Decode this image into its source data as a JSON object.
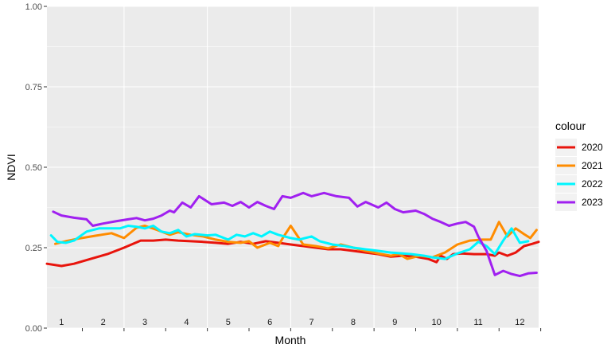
{
  "chart_data": {
    "type": "line",
    "xlabel": "Month",
    "ylabel": "NDVI",
    "ylim": [
      0,
      1
    ],
    "xlim": [
      0.65,
      12.45
    ],
    "y_ticks": [
      "0.00",
      "0.25",
      "0.50",
      "0.75",
      "1.00"
    ],
    "y_tick_values": [
      0,
      0.25,
      0.5,
      0.75,
      1.0
    ],
    "month_labels": [
      "1",
      "2",
      "3",
      "4",
      "5",
      "6",
      "7",
      "8",
      "9",
      "10",
      "11",
      "12"
    ],
    "grid": true,
    "legend": {
      "title": "colour",
      "placement": "right"
    },
    "series": [
      {
        "name": "2020",
        "color": "#e8140c",
        "x": [
          0.65,
          1.0,
          1.3,
          1.7,
          2.1,
          2.5,
          2.9,
          3.2,
          3.5,
          3.8,
          4.1,
          4.4,
          4.7,
          5.0,
          5.3,
          5.6,
          5.9,
          6.2,
          6.5,
          6.8,
          7.1,
          7.4,
          7.7,
          8.0,
          8.3,
          8.6,
          8.9,
          9.2,
          9.5,
          9.8,
          10.0,
          10.1,
          10.25,
          10.4,
          10.6,
          10.9,
          11.2,
          11.4,
          11.5,
          11.7,
          11.9,
          12.1,
          12.3,
          12.45
        ],
        "values": [
          0.2,
          0.193,
          0.2,
          0.215,
          0.23,
          0.25,
          0.272,
          0.272,
          0.275,
          0.272,
          0.27,
          0.268,
          0.265,
          0.262,
          0.268,
          0.262,
          0.27,
          0.265,
          0.26,
          0.255,
          0.25,
          0.245,
          0.245,
          0.24,
          0.235,
          0.23,
          0.222,
          0.225,
          0.222,
          0.215,
          0.205,
          0.225,
          0.215,
          0.23,
          0.232,
          0.23,
          0.23,
          0.225,
          0.235,
          0.225,
          0.235,
          0.255,
          0.262,
          0.268
        ]
      },
      {
        "name": "2021",
        "color": "#ff8c00",
        "x": [
          0.85,
          1.1,
          1.4,
          1.8,
          2.2,
          2.5,
          2.8,
          3.0,
          3.3,
          3.6,
          3.8,
          4.1,
          4.4,
          4.7,
          5.0,
          5.3,
          5.5,
          5.7,
          6.0,
          6.2,
          6.3,
          6.5,
          6.8,
          7.1,
          7.4,
          7.7,
          8.0,
          8.3,
          8.6,
          8.9,
          9.1,
          9.3,
          9.6,
          9.9,
          10.2,
          10.5,
          10.8,
          11.1,
          11.3,
          11.5,
          11.7,
          11.9,
          12.1,
          12.25,
          12.4
        ],
        "values": [
          0.262,
          0.27,
          0.278,
          0.287,
          0.295,
          0.28,
          0.312,
          0.318,
          0.305,
          0.29,
          0.298,
          0.29,
          0.285,
          0.275,
          0.268,
          0.265,
          0.27,
          0.25,
          0.265,
          0.255,
          0.278,
          0.318,
          0.26,
          0.255,
          0.248,
          0.26,
          0.25,
          0.24,
          0.232,
          0.225,
          0.23,
          0.215,
          0.225,
          0.22,
          0.235,
          0.26,
          0.272,
          0.275,
          0.275,
          0.33,
          0.285,
          0.31,
          0.292,
          0.28,
          0.305
        ]
      },
      {
        "name": "2022",
        "color": "#00f5ff",
        "x": [
          0.75,
          0.9,
          1.1,
          1.3,
          1.6,
          1.9,
          2.2,
          2.4,
          2.6,
          2.8,
          3.0,
          3.2,
          3.4,
          3.6,
          3.8,
          4.0,
          4.2,
          4.5,
          4.7,
          5.0,
          5.2,
          5.4,
          5.6,
          5.8,
          6.0,
          6.2,
          6.5,
          6.7,
          7.0,
          7.2,
          7.5,
          7.8,
          8.0,
          8.3,
          8.6,
          8.9,
          9.2,
          9.4,
          9.7,
          9.9,
          10.2,
          10.5,
          10.8,
          11.0,
          11.2,
          11.4,
          11.6,
          11.8,
          12.0,
          12.2
        ],
        "values": [
          0.288,
          0.268,
          0.265,
          0.272,
          0.3,
          0.31,
          0.31,
          0.31,
          0.318,
          0.315,
          0.31,
          0.318,
          0.3,
          0.295,
          0.305,
          0.285,
          0.292,
          0.288,
          0.29,
          0.275,
          0.29,
          0.285,
          0.295,
          0.285,
          0.3,
          0.29,
          0.28,
          0.275,
          0.285,
          0.27,
          0.26,
          0.255,
          0.25,
          0.245,
          0.24,
          0.235,
          0.232,
          0.23,
          0.225,
          0.22,
          0.215,
          0.232,
          0.245,
          0.268,
          0.255,
          0.23,
          0.272,
          0.31,
          0.265,
          0.27
        ]
      },
      {
        "name": "2023",
        "color": "#a020f0",
        "x": [
          0.8,
          1.0,
          1.3,
          1.6,
          1.75,
          2.0,
          2.3,
          2.6,
          2.8,
          3.0,
          3.2,
          3.4,
          3.6,
          3.7,
          3.9,
          4.1,
          4.3,
          4.6,
          4.9,
          5.1,
          5.3,
          5.5,
          5.7,
          5.9,
          6.1,
          6.3,
          6.5,
          6.8,
          7.0,
          7.3,
          7.6,
          7.9,
          8.1,
          8.3,
          8.6,
          8.8,
          9.0,
          9.2,
          9.5,
          9.7,
          9.9,
          10.1,
          10.3,
          10.5,
          10.7,
          10.9,
          11.0,
          11.2,
          11.4,
          11.6,
          11.8,
          12.0,
          12.2,
          12.4
        ],
        "values": [
          0.362,
          0.35,
          0.343,
          0.338,
          0.318,
          0.325,
          0.332,
          0.338,
          0.342,
          0.335,
          0.34,
          0.35,
          0.365,
          0.36,
          0.39,
          0.375,
          0.41,
          0.385,
          0.39,
          0.38,
          0.392,
          0.375,
          0.392,
          0.38,
          0.37,
          0.41,
          0.405,
          0.42,
          0.41,
          0.42,
          0.41,
          0.405,
          0.378,
          0.392,
          0.375,
          0.39,
          0.37,
          0.36,
          0.365,
          0.355,
          0.34,
          0.33,
          0.318,
          0.325,
          0.33,
          0.315,
          0.285,
          0.24,
          0.165,
          0.178,
          0.168,
          0.162,
          0.17,
          0.172
        ]
      }
    ]
  }
}
